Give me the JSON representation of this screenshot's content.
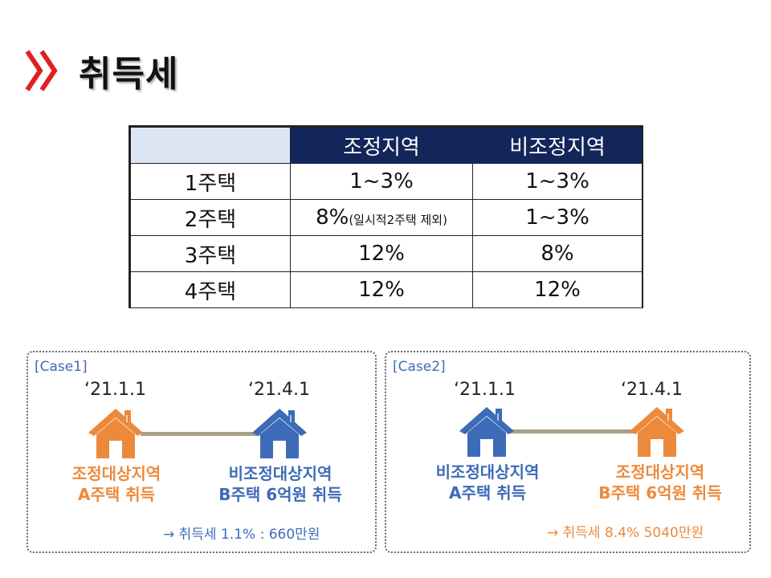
{
  "title": "취득세",
  "colors": {
    "chevron": "#e02020",
    "header_bg": "#12265a",
    "blank_header": "#dce6f2",
    "orange": "#ec8a3c",
    "blue": "#3e6bb8"
  },
  "table": {
    "headers": [
      "",
      "조정지역",
      "비조정지역"
    ],
    "rows": [
      {
        "label": "1주택",
        "adjusted": "1~3%",
        "adjusted_note": "",
        "non_adjusted": "1~3%"
      },
      {
        "label": "2주택",
        "adjusted": "8%",
        "adjusted_note": "(일시적2주택 제외)",
        "non_adjusted": "1~3%"
      },
      {
        "label": "3주택",
        "adjusted": "12%",
        "adjusted_note": "",
        "non_adjusted": "8%"
      },
      {
        "label": "4주택",
        "adjusted": "12%",
        "adjusted_note": "",
        "non_adjusted": "12%"
      }
    ]
  },
  "cases": [
    {
      "title": "[Case1]",
      "date_a": "‘21.1.1",
      "date_b": "‘21.4.1",
      "house_a_line1": "조정대상지역",
      "house_a_line2": "A주택 취득",
      "house_b_line1": "비조정대상지역",
      "house_b_line2": "B주택 6억원 취득",
      "result": "→ 취득세 1.1% : 660만원"
    },
    {
      "title": "[Case2]",
      "date_a": "‘21.1.1",
      "date_b": "‘21.4.1",
      "house_a_line1": "비조정대상지역",
      "house_a_line2": "A주택 취득",
      "house_b_line1": "조정대상지역",
      "house_b_line2": "B주택 6억원 취득",
      "result": "→ 취득세 8.4% 5040만원"
    }
  ]
}
